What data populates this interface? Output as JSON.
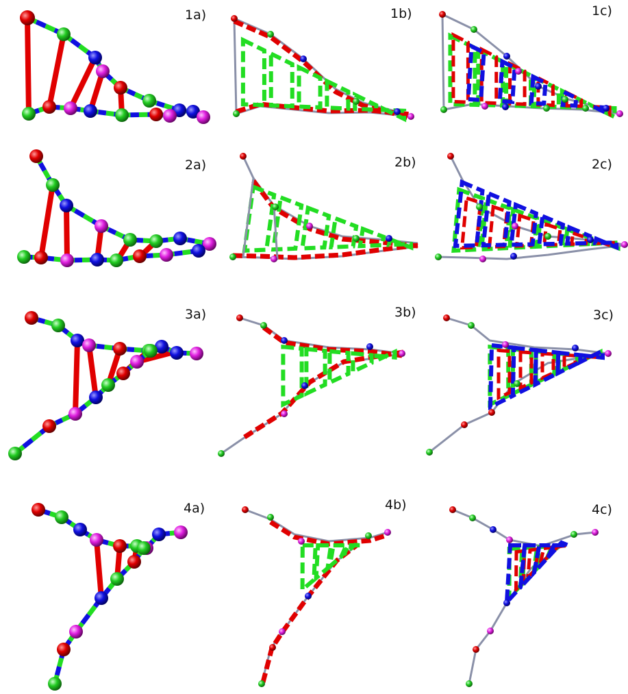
{
  "colors": {
    "red": "#e00000",
    "green": "#22dd22",
    "blue": "#1010e0",
    "magenta": "#e020e0",
    "gray": "#8a90a8"
  },
  "panels": [
    {
      "id": "1a",
      "label": "1a)"
    },
    {
      "id": "1b",
      "label": "1b)"
    },
    {
      "id": "1c",
      "label": "1c)"
    },
    {
      "id": "2a",
      "label": "2a)"
    },
    {
      "id": "2b",
      "label": "2b)"
    },
    {
      "id": "2c",
      "label": "2c)"
    },
    {
      "id": "3a",
      "label": "3a)"
    },
    {
      "id": "3b",
      "label": "3b)"
    },
    {
      "id": "3c",
      "label": "3c)"
    },
    {
      "id": "4a",
      "label": "4a)"
    },
    {
      "id": "4b",
      "label": "4b)"
    },
    {
      "id": "4c",
      "label": "4c)"
    }
  ]
}
